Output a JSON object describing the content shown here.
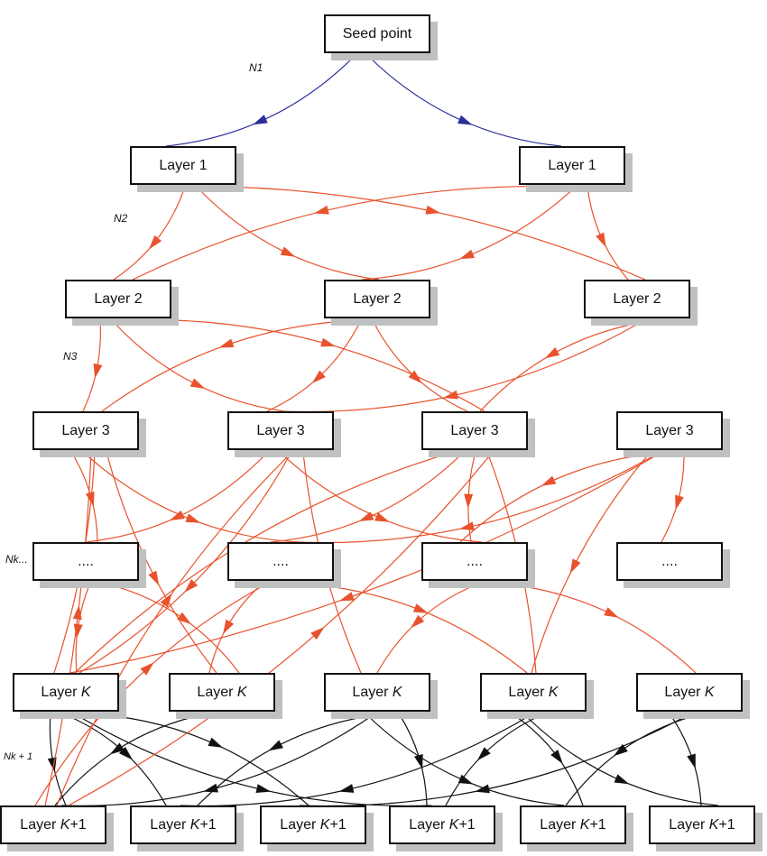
{
  "nodes": {
    "seed": {
      "text": "Seed point",
      "suffix": ""
    },
    "l1a": {
      "text": "Layer 1",
      "suffix": ""
    },
    "l1b": {
      "text": "Layer 1",
      "suffix": ""
    },
    "l2a": {
      "text": "Layer 2",
      "suffix": ""
    },
    "l2b": {
      "text": "Layer 2",
      "suffix": ""
    },
    "l2c": {
      "text": "Layer 2",
      "suffix": ""
    },
    "l3a": {
      "text": "Layer 3",
      "suffix": ""
    },
    "l3b": {
      "text": "Layer 3",
      "suffix": ""
    },
    "l3c": {
      "text": "Layer 3",
      "suffix": ""
    },
    "l3d": {
      "text": "Layer 3",
      "suffix": ""
    },
    "da": {
      "text": "....",
      "suffix": ""
    },
    "db": {
      "text": "....",
      "suffix": ""
    },
    "dc": {
      "text": "....",
      "suffix": ""
    },
    "dd": {
      "text": "....",
      "suffix": ""
    },
    "ka": {
      "text": "Layer ",
      "italic": "K",
      "suffix": ""
    },
    "kb": {
      "text": "Layer ",
      "italic": "K",
      "suffix": ""
    },
    "kc": {
      "text": "Layer ",
      "italic": "K",
      "suffix": ""
    },
    "kd": {
      "text": "Layer ",
      "italic": "K",
      "suffix": ""
    },
    "ke": {
      "text": "Layer ",
      "italic": "K",
      "suffix": ""
    },
    "k1a": {
      "text": "Layer ",
      "italic": "K",
      "suffix": "+1"
    },
    "k1b": {
      "text": "Layer ",
      "italic": "K",
      "suffix": "+1"
    },
    "k1c": {
      "text": "Layer ",
      "italic": "K",
      "suffix": "+1"
    },
    "k1d": {
      "text": "Layer ",
      "italic": "K",
      "suffix": "+1"
    },
    "k1e": {
      "text": "Layer ",
      "italic": "K",
      "suffix": "+1"
    },
    "k1f": {
      "text": "Layer ",
      "italic": "K",
      "suffix": "+1"
    }
  },
  "labels": {
    "n1": "N1",
    "n2": "N2",
    "n3": "N3",
    "nk": "Nk...",
    "nk1": "Nk + 1"
  },
  "colors": {
    "seed_edges": "#2b2f9a",
    "layer_edges": "#e8522c",
    "final_edges": "#111111",
    "shadow": "#bfc1c1"
  },
  "edges": [
    [
      "seed",
      "l1a",
      "seed_edges"
    ],
    [
      "seed",
      "l1b",
      "seed_edges"
    ],
    [
      "l1a",
      "l2a",
      "layer_edges"
    ],
    [
      "l1a",
      "l2b",
      "layer_edges"
    ],
    [
      "l1a",
      "l2c",
      "layer_edges"
    ],
    [
      "l1b",
      "l2a",
      "layer_edges"
    ],
    [
      "l1b",
      "l2b",
      "layer_edges"
    ],
    [
      "l1b",
      "l2c",
      "layer_edges"
    ],
    [
      "l2a",
      "l3a",
      "layer_edges"
    ],
    [
      "l2a",
      "l3b",
      "layer_edges"
    ],
    [
      "l2a",
      "l3c",
      "layer_edges"
    ],
    [
      "l2b",
      "l3a",
      "layer_edges"
    ],
    [
      "l2b",
      "l3b",
      "layer_edges"
    ],
    [
      "l2b",
      "l3c",
      "layer_edges"
    ],
    [
      "l2c",
      "l3b",
      "layer_edges"
    ],
    [
      "l2c",
      "l3c",
      "layer_edges"
    ],
    [
      "l3a",
      "da",
      "layer_edges"
    ],
    [
      "l3a",
      "db",
      "layer_edges"
    ],
    [
      "l3a",
      "ka",
      "layer_edges"
    ],
    [
      "l3a",
      "kb",
      "layer_edges"
    ],
    [
      "l3b",
      "da",
      "layer_edges"
    ],
    [
      "l3b",
      "dc",
      "layer_edges"
    ],
    [
      "l3b",
      "ka",
      "layer_edges"
    ],
    [
      "l3b",
      "kc",
      "layer_edges"
    ],
    [
      "l3c",
      "db",
      "layer_edges"
    ],
    [
      "l3c",
      "dc",
      "layer_edges"
    ],
    [
      "l3c",
      "kd",
      "layer_edges"
    ],
    [
      "l3c",
      "ka",
      "layer_edges"
    ],
    [
      "l3d",
      "db",
      "layer_edges"
    ],
    [
      "l3d",
      "dc",
      "layer_edges"
    ],
    [
      "l3d",
      "dd",
      "layer_edges"
    ],
    [
      "l3d",
      "kd",
      "layer_edges"
    ],
    [
      "l3d",
      "ka",
      "layer_edges"
    ],
    [
      "da",
      "ka",
      "layer_edges"
    ],
    [
      "da",
      "kb",
      "layer_edges"
    ],
    [
      "db",
      "kb",
      "layer_edges"
    ],
    [
      "db",
      "kd",
      "layer_edges"
    ],
    [
      "dc",
      "kc",
      "layer_edges"
    ],
    [
      "dc",
      "ke",
      "layer_edges"
    ],
    [
      "ka",
      "k1a",
      "final_edges"
    ],
    [
      "ka",
      "k1b",
      "final_edges"
    ],
    [
      "ka",
      "k1d",
      "final_edges"
    ],
    [
      "ka",
      "k1c",
      "final_edges"
    ],
    [
      "kb",
      "k1a",
      "final_edges"
    ],
    [
      "kc",
      "k1a",
      "final_edges"
    ],
    [
      "kc",
      "k1b",
      "final_edges"
    ],
    [
      "kc",
      "k1d",
      "final_edges"
    ],
    [
      "kc",
      "k1e",
      "final_edges"
    ],
    [
      "kd",
      "k1b",
      "final_edges"
    ],
    [
      "kd",
      "k1d",
      "final_edges"
    ],
    [
      "kd",
      "k1e",
      "final_edges"
    ],
    [
      "kd",
      "k1f",
      "final_edges"
    ],
    [
      "ke",
      "k1c",
      "final_edges"
    ],
    [
      "ke",
      "k1e",
      "final_edges"
    ],
    [
      "ke",
      "k1f",
      "final_edges"
    ],
    [
      "k1a",
      "l3a",
      "layer_edges"
    ],
    [
      "k1a",
      "l3b",
      "layer_edges"
    ],
    [
      "k1a",
      "l3c",
      "layer_edges"
    ],
    [
      "k1a",
      "db",
      "layer_edges"
    ]
  ]
}
